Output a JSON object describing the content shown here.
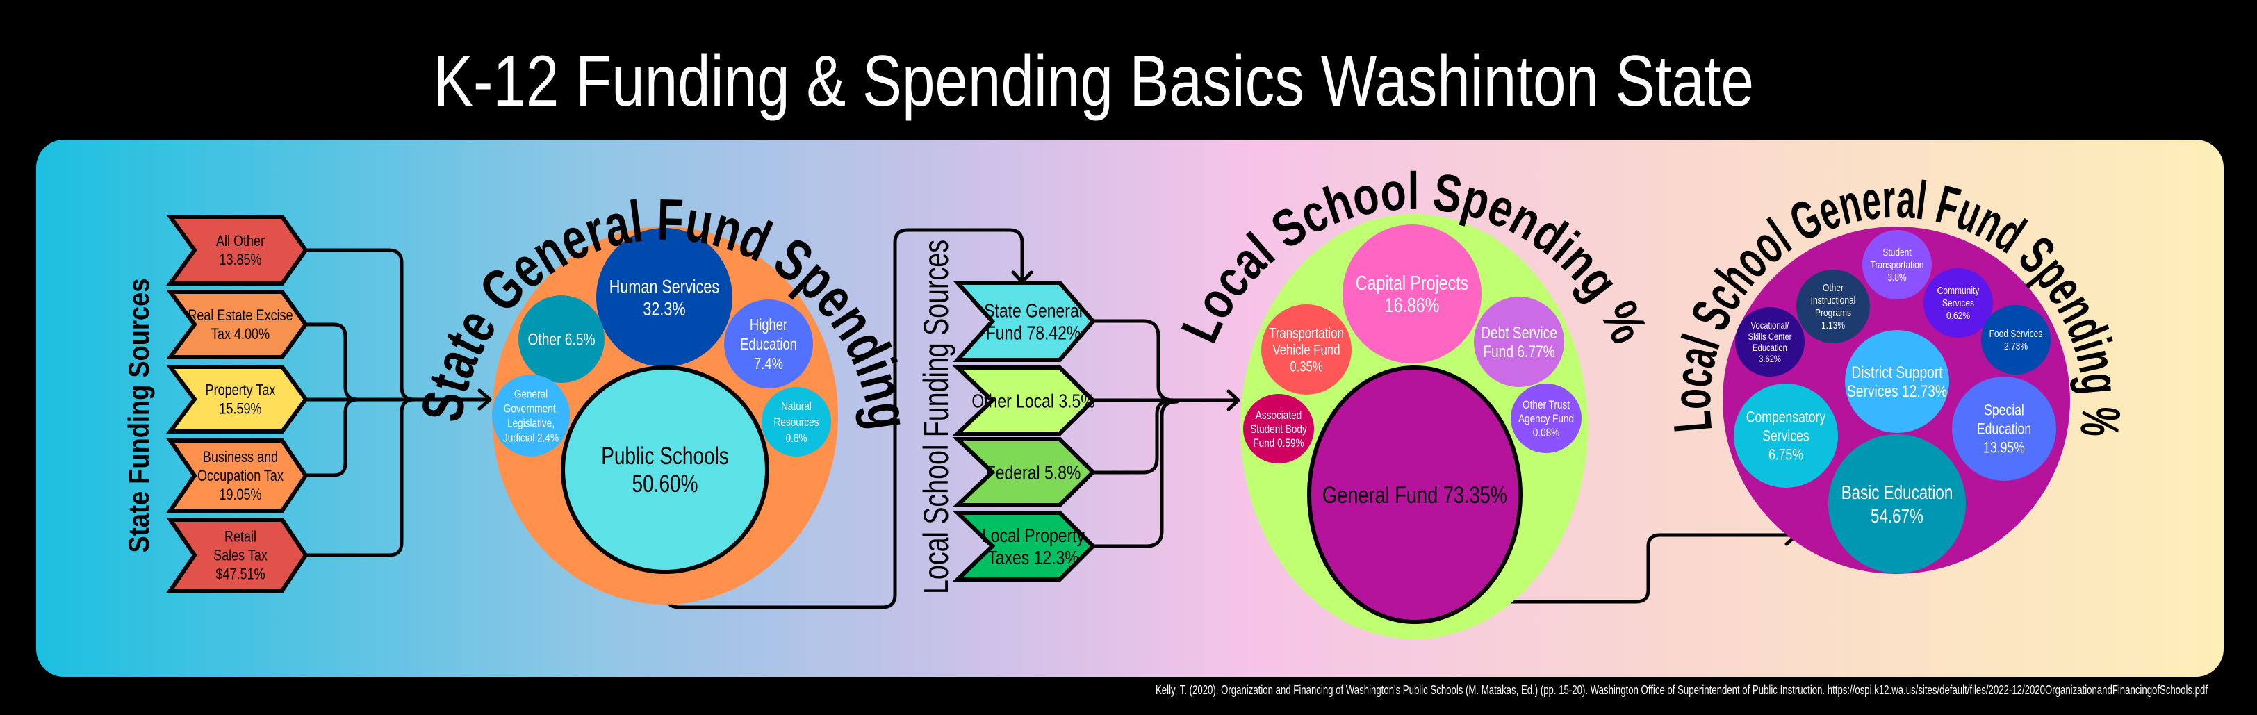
{
  "title": "K-12 Funding & Spending Basics Washinton State",
  "citation": "Kelly, T. (2020). Organization and Financing of Washington's Public Schools (M. Matakas, Ed.) (pp. 15-20). Washington Office of Superintendent of Public Instruction. https://ospi.k12.wa.us/sites/default/files/2022-12/2020OrganizationandFinancingofSchools.pdf",
  "colors": {
    "background": "#000000",
    "gradient": [
      "#1cc0e0",
      "#b7c3e8",
      "#f5c3e8",
      "#f9d8d0",
      "#fdefb8"
    ],
    "state_ellipse": "#ff914d",
    "local_ellipse": "#c1ff72",
    "local_general_ellipse": "#b5139b"
  },
  "state_sources": {
    "heading": "State Funding Sources",
    "items": [
      {
        "lines": [
          "All Other",
          "13.85%"
        ],
        "color": "#e0524a"
      },
      {
        "lines": [
          "Real Estate Excise",
          "Tax 4.00%"
        ],
        "color": "#f7914f"
      },
      {
        "lines": [
          "Property Tax",
          "15.59%"
        ],
        "color": "#ffde59"
      },
      {
        "lines": [
          "Business and",
          "Occupation Tax",
          "19.05%"
        ],
        "color": "#ff914d"
      },
      {
        "lines": [
          "Retail",
          "Sales Tax",
          "$47.51%"
        ],
        "color": "#e0524a"
      }
    ]
  },
  "state_spending": {
    "heading": "State General Fund Spending %",
    "items": [
      {
        "lines": [
          "Human Services",
          "32.3%"
        ],
        "color": "#004aad",
        "text_color": "#ffffff"
      },
      {
        "lines": [
          "Other 6.5%"
        ],
        "color": "#0097b2",
        "text_color": "#ffffff"
      },
      {
        "lines": [
          "Higher",
          "Education",
          "7.4%"
        ],
        "color": "#5271ff",
        "text_color": "#ffffff"
      },
      {
        "lines": [
          "General",
          "Government,",
          "Legislative,",
          "Judicial 2.4%"
        ],
        "color": "#38b6ff",
        "text_color": "#ffffff"
      },
      {
        "lines": [
          "Natural",
          "Resources",
          "0.8%"
        ],
        "color": "#0cc0df",
        "text_color": "#ffffff"
      },
      {
        "lines": [
          "Public Schools",
          "50.60%"
        ],
        "color": "#5ce1e6",
        "text_color": "#000000"
      }
    ]
  },
  "local_sources": {
    "heading": "Local School Funding Sources",
    "items": [
      {
        "lines": [
          "State General",
          "Fund 78.42%"
        ],
        "color": "#5ce1e6"
      },
      {
        "lines": [
          "Other Local 3.5%"
        ],
        "color": "#c1ff72"
      },
      {
        "lines": [
          "Federal 5.8%"
        ],
        "color": "#7ed957"
      },
      {
        "lines": [
          "Local Property",
          "Taxes 12.3%"
        ],
        "color": "#00bf63"
      }
    ]
  },
  "local_spending": {
    "heading": "Local School Spending %",
    "items": [
      {
        "lines": [
          "Capital Projects",
          "16.86%"
        ],
        "color": "#ff66c4",
        "text_color": "#ffffff"
      },
      {
        "lines": [
          "Transportation",
          "Vehicle Fund",
          "0.35%"
        ],
        "color": "#ff5757",
        "text_color": "#ffffff"
      },
      {
        "lines": [
          "Debt Service",
          "Fund 6.77%"
        ],
        "color": "#cb6ce6",
        "text_color": "#ffffff"
      },
      {
        "lines": [
          "Associated",
          "Student Body",
          "Fund 0.59%"
        ],
        "color": "#cf0060",
        "text_color": "#ffffff"
      },
      {
        "lines": [
          "Other Trust",
          "Agency Fund",
          "0.08%"
        ],
        "color": "#8c52ff",
        "text_color": "#ffffff"
      },
      {
        "lines": [
          "General Fund 73.35%"
        ],
        "color": "#b5139b",
        "text_color": "#000000"
      }
    ]
  },
  "local_general_spending": {
    "heading": "Local School General Fund Spending %",
    "items": [
      {
        "lines": [
          "Student",
          "Transportation",
          "3.8%"
        ],
        "color": "#8c52ff",
        "text_color": "#ffffff"
      },
      {
        "lines": [
          "Other",
          "Instructional",
          "Programs",
          "1.13%"
        ],
        "color": "#1d3b6e",
        "text_color": "#ffffff"
      },
      {
        "lines": [
          "Community",
          "Services",
          "0.62%"
        ],
        "color": "#5e17eb",
        "text_color": "#ffffff"
      },
      {
        "lines": [
          "Vocational/",
          "Skills Center",
          "Education",
          "3.62%"
        ],
        "color": "#2f0a8f",
        "text_color": "#ffffff"
      },
      {
        "lines": [
          "Food Services",
          "2.73%"
        ],
        "color": "#004aad",
        "text_color": "#ffffff"
      },
      {
        "lines": [
          "District Support",
          "Services 12.73%"
        ],
        "color": "#38b6ff",
        "text_color": "#ffffff"
      },
      {
        "lines": [
          "Compensatory",
          "Services",
          "6.75%"
        ],
        "color": "#0cc0df",
        "text_color": "#ffffff"
      },
      {
        "lines": [
          "Special",
          "Education",
          "13.95%"
        ],
        "color": "#5271ff",
        "text_color": "#ffffff"
      },
      {
        "lines": [
          "Basic Education",
          "54.67%"
        ],
        "color": "#0097b2",
        "text_color": "#ffffff"
      }
    ]
  }
}
